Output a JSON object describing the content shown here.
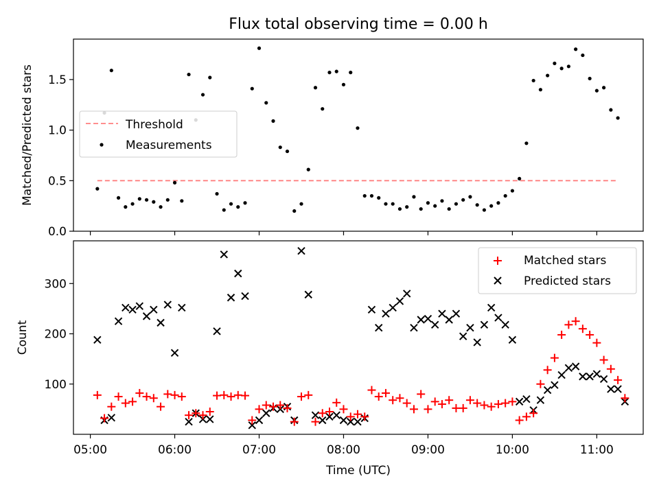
{
  "title": "Flux total observing time = 0.00 h",
  "colors": {
    "threshold": "#ff7f7f",
    "measurements": "#000000",
    "matched": "#ff0000",
    "predicted": "#000000"
  },
  "chart_data": [
    {
      "type": "scatter",
      "panel": "top",
      "ylabel": "Matched/Predicted stars",
      "ylim": [
        0,
        1.9
      ],
      "yticks": [
        "0.0",
        "0.5",
        "1.0",
        "1.5"
      ],
      "xlim": [
        "04:48",
        "11:33"
      ],
      "legend": {
        "placement": "center-left",
        "entries": [
          "Threshold",
          "Measurements"
        ]
      },
      "threshold": {
        "name": "Threshold",
        "y": 0.5,
        "x_start": "05:05",
        "x_end": "11:15",
        "style": "dashed"
      },
      "series": [
        {
          "name": "Measurements",
          "points": [
            [
              "05:05",
              0.42
            ],
            [
              "05:10",
              1.17
            ],
            [
              "05:15",
              1.59
            ],
            [
              "05:20",
              0.33
            ],
            [
              "05:25",
              0.24
            ],
            [
              "05:30",
              0.27
            ],
            [
              "05:35",
              0.32
            ],
            [
              "05:40",
              0.31
            ],
            [
              "05:45",
              0.29
            ],
            [
              "05:50",
              0.24
            ],
            [
              "05:55",
              0.31
            ],
            [
              "06:00",
              0.48
            ],
            [
              "06:05",
              0.3
            ],
            [
              "06:10",
              1.55
            ],
            [
              "06:15",
              1.1
            ],
            [
              "06:20",
              1.35
            ],
            [
              "06:25",
              1.52
            ],
            [
              "06:30",
              0.37
            ],
            [
              "06:35",
              0.21
            ],
            [
              "06:40",
              0.27
            ],
            [
              "06:45",
              0.24
            ],
            [
              "06:50",
              0.28
            ],
            [
              "06:55",
              1.41
            ],
            [
              "07:00",
              1.81
            ],
            [
              "07:05",
              1.27
            ],
            [
              "07:10",
              1.09
            ],
            [
              "07:15",
              0.83
            ],
            [
              "07:20",
              0.79
            ],
            [
              "07:25",
              0.2
            ],
            [
              "07:30",
              0.27
            ],
            [
              "07:35",
              0.61
            ],
            [
              "07:40",
              1.42
            ],
            [
              "07:45",
              1.21
            ],
            [
              "07:50",
              1.57
            ],
            [
              "07:55",
              1.58
            ],
            [
              "08:00",
              1.45
            ],
            [
              "08:05",
              1.57
            ],
            [
              "08:10",
              1.02
            ],
            [
              "08:15",
              0.35
            ],
            [
              "08:20",
              0.35
            ],
            [
              "08:25",
              0.33
            ],
            [
              "08:30",
              0.27
            ],
            [
              "08:35",
              0.27
            ],
            [
              "08:40",
              0.22
            ],
            [
              "08:45",
              0.24
            ],
            [
              "08:50",
              0.34
            ],
            [
              "08:55",
              0.22
            ],
            [
              "09:00",
              0.28
            ],
            [
              "09:05",
              0.25
            ],
            [
              "09:10",
              0.3
            ],
            [
              "09:15",
              0.22
            ],
            [
              "09:20",
              0.27
            ],
            [
              "09:25",
              0.31
            ],
            [
              "09:30",
              0.34
            ],
            [
              "09:35",
              0.26
            ],
            [
              "09:40",
              0.21
            ],
            [
              "09:45",
              0.25
            ],
            [
              "09:50",
              0.28
            ],
            [
              "09:55",
              0.35
            ],
            [
              "10:00",
              0.4
            ],
            [
              "10:05",
              0.52
            ],
            [
              "10:10",
              0.87
            ],
            [
              "10:15",
              1.49
            ],
            [
              "10:20",
              1.4
            ],
            [
              "10:25",
              1.54
            ],
            [
              "10:30",
              1.66
            ],
            [
              "10:35",
              1.61
            ],
            [
              "10:40",
              1.63
            ],
            [
              "10:45",
              1.8
            ],
            [
              "10:50",
              1.74
            ],
            [
              "10:55",
              1.51
            ],
            [
              "11:00",
              1.39
            ],
            [
              "11:05",
              1.42
            ],
            [
              "11:10",
              1.2
            ],
            [
              "11:15",
              1.12
            ]
          ]
        }
      ]
    },
    {
      "type": "scatter",
      "panel": "bottom",
      "xlabel": "Time (UTC)",
      "ylabel": "Count",
      "ylim": [
        0,
        385
      ],
      "yticks": [
        "100",
        "200",
        "300"
      ],
      "xlim": [
        "04:48",
        "11:33"
      ],
      "xticks": [
        "05:00",
        "06:00",
        "07:00",
        "08:00",
        "09:00",
        "10:00",
        "11:00"
      ],
      "legend": {
        "placement": "top-right",
        "entries": [
          "Matched stars",
          "Predicted stars"
        ]
      },
      "series": [
        {
          "name": "Matched stars",
          "marker": "+",
          "points": [
            [
              "05:05",
              78
            ],
            [
              "05:10",
              32
            ],
            [
              "05:15",
              55
            ],
            [
              "05:20",
              75
            ],
            [
              "05:25",
              62
            ],
            [
              "05:30",
              65
            ],
            [
              "05:35",
              82
            ],
            [
              "05:40",
              75
            ],
            [
              "05:45",
              72
            ],
            [
              "05:50",
              55
            ],
            [
              "05:55",
              80
            ],
            [
              "06:00",
              78
            ],
            [
              "06:05",
              75
            ],
            [
              "06:10",
              38
            ],
            [
              "06:15",
              42
            ],
            [
              "06:20",
              38
            ],
            [
              "06:25",
              45
            ],
            [
              "06:30",
              77
            ],
            [
              "06:35",
              78
            ],
            [
              "06:40",
              75
            ],
            [
              "06:45",
              78
            ],
            [
              "06:50",
              77
            ],
            [
              "06:55",
              28
            ],
            [
              "07:00",
              50
            ],
            [
              "07:05",
              58
            ],
            [
              "07:10",
              55
            ],
            [
              "07:15",
              58
            ],
            [
              "07:20",
              52
            ],
            [
              "07:25",
              25
            ],
            [
              "07:30",
              75
            ],
            [
              "07:35",
              78
            ],
            [
              "07:40",
              25
            ],
            [
              "07:45",
              42
            ],
            [
              "07:50",
              45
            ],
            [
              "07:55",
              63
            ],
            [
              "08:00",
              50
            ],
            [
              "08:05",
              35
            ],
            [
              "08:10",
              40
            ],
            [
              "08:15",
              35
            ],
            [
              "08:20",
              88
            ],
            [
              "08:25",
              75
            ],
            [
              "08:30",
              82
            ],
            [
              "08:35",
              68
            ],
            [
              "08:40",
              72
            ],
            [
              "08:45",
              62
            ],
            [
              "08:50",
              50
            ],
            [
              "08:55",
              80
            ],
            [
              "09:00",
              50
            ],
            [
              "09:05",
              65
            ],
            [
              "09:10",
              60
            ],
            [
              "09:15",
              68
            ],
            [
              "09:20",
              52
            ],
            [
              "09:25",
              52
            ],
            [
              "09:30",
              68
            ],
            [
              "09:35",
              62
            ],
            [
              "09:40",
              58
            ],
            [
              "09:45",
              55
            ],
            [
              "09:50",
              60
            ],
            [
              "09:55",
              62
            ],
            [
              "10:00",
              65
            ],
            [
              "10:05",
              28
            ],
            [
              "10:10",
              35
            ],
            [
              "10:15",
              42
            ],
            [
              "10:20",
              100
            ],
            [
              "10:25",
              128
            ],
            [
              "10:30",
              152
            ],
            [
              "10:35",
              198
            ],
            [
              "10:40",
              218
            ],
            [
              "10:45",
              225
            ],
            [
              "10:50",
              210
            ],
            [
              "10:55",
              198
            ],
            [
              "11:00",
              182
            ],
            [
              "11:05",
              148
            ],
            [
              "11:10",
              130
            ],
            [
              "11:15",
              108
            ],
            [
              "11:20",
              72
            ]
          ]
        },
        {
          "name": "Predicted stars",
          "marker": "x",
          "points": [
            [
              "05:05",
              188
            ],
            [
              "05:10",
              28
            ],
            [
              "05:15",
              33
            ],
            [
              "05:20",
              225
            ],
            [
              "05:25",
              252
            ],
            [
              "05:30",
              248
            ],
            [
              "05:35",
              255
            ],
            [
              "05:40",
              235
            ],
            [
              "05:45",
              248
            ],
            [
              "05:50",
              222
            ],
            [
              "05:55",
              258
            ],
            [
              "06:00",
              162
            ],
            [
              "06:05",
              252
            ],
            [
              "06:10",
              25
            ],
            [
              "06:15",
              42
            ],
            [
              "06:20",
              30
            ],
            [
              "06:25",
              30
            ],
            [
              "06:30",
              205
            ],
            [
              "06:35",
              358
            ],
            [
              "06:40",
              272
            ],
            [
              "06:45",
              320
            ],
            [
              "06:50",
              275
            ],
            [
              "06:55",
              18
            ],
            [
              "07:00",
              28
            ],
            [
              "07:05",
              42
            ],
            [
              "07:10",
              52
            ],
            [
              "07:15",
              50
            ],
            [
              "07:20",
              55
            ],
            [
              "07:25",
              28
            ],
            [
              "07:30",
              365
            ],
            [
              "07:35",
              278
            ],
            [
              "07:40",
              38
            ],
            [
              "07:45",
              28
            ],
            [
              "07:50",
              35
            ],
            [
              "07:55",
              38
            ],
            [
              "08:00",
              28
            ],
            [
              "08:05",
              25
            ],
            [
              "08:10",
              25
            ],
            [
              "08:15",
              32
            ],
            [
              "08:20",
              248
            ],
            [
              "08:25",
              212
            ],
            [
              "08:30",
              240
            ],
            [
              "08:35",
              252
            ],
            [
              "08:40",
              265
            ],
            [
              "08:45",
              280
            ],
            [
              "08:50",
              212
            ],
            [
              "08:55",
              228
            ],
            [
              "09:00",
              230
            ],
            [
              "09:05",
              218
            ],
            [
              "09:10",
              240
            ],
            [
              "09:15",
              228
            ],
            [
              "09:20",
              240
            ],
            [
              "09:25",
              195
            ],
            [
              "09:30",
              212
            ],
            [
              "09:35",
              183
            ],
            [
              "09:40",
              218
            ],
            [
              "09:45",
              252
            ],
            [
              "09:50",
              232
            ],
            [
              "09:55",
              218
            ],
            [
              "10:00",
              188
            ],
            [
              "10:05",
              65
            ],
            [
              "10:10",
              70
            ],
            [
              "10:15",
              48
            ],
            [
              "10:20",
              68
            ],
            [
              "10:25",
              88
            ],
            [
              "10:30",
              98
            ],
            [
              "10:35",
              118
            ],
            [
              "10:40",
              132
            ],
            [
              "10:45",
              135
            ],
            [
              "10:50",
              115
            ],
            [
              "10:55",
              115
            ],
            [
              "11:00",
              120
            ],
            [
              "11:05",
              110
            ],
            [
              "11:10",
              90
            ],
            [
              "11:15",
              90
            ],
            [
              "11:20",
              65
            ]
          ]
        }
      ]
    }
  ]
}
